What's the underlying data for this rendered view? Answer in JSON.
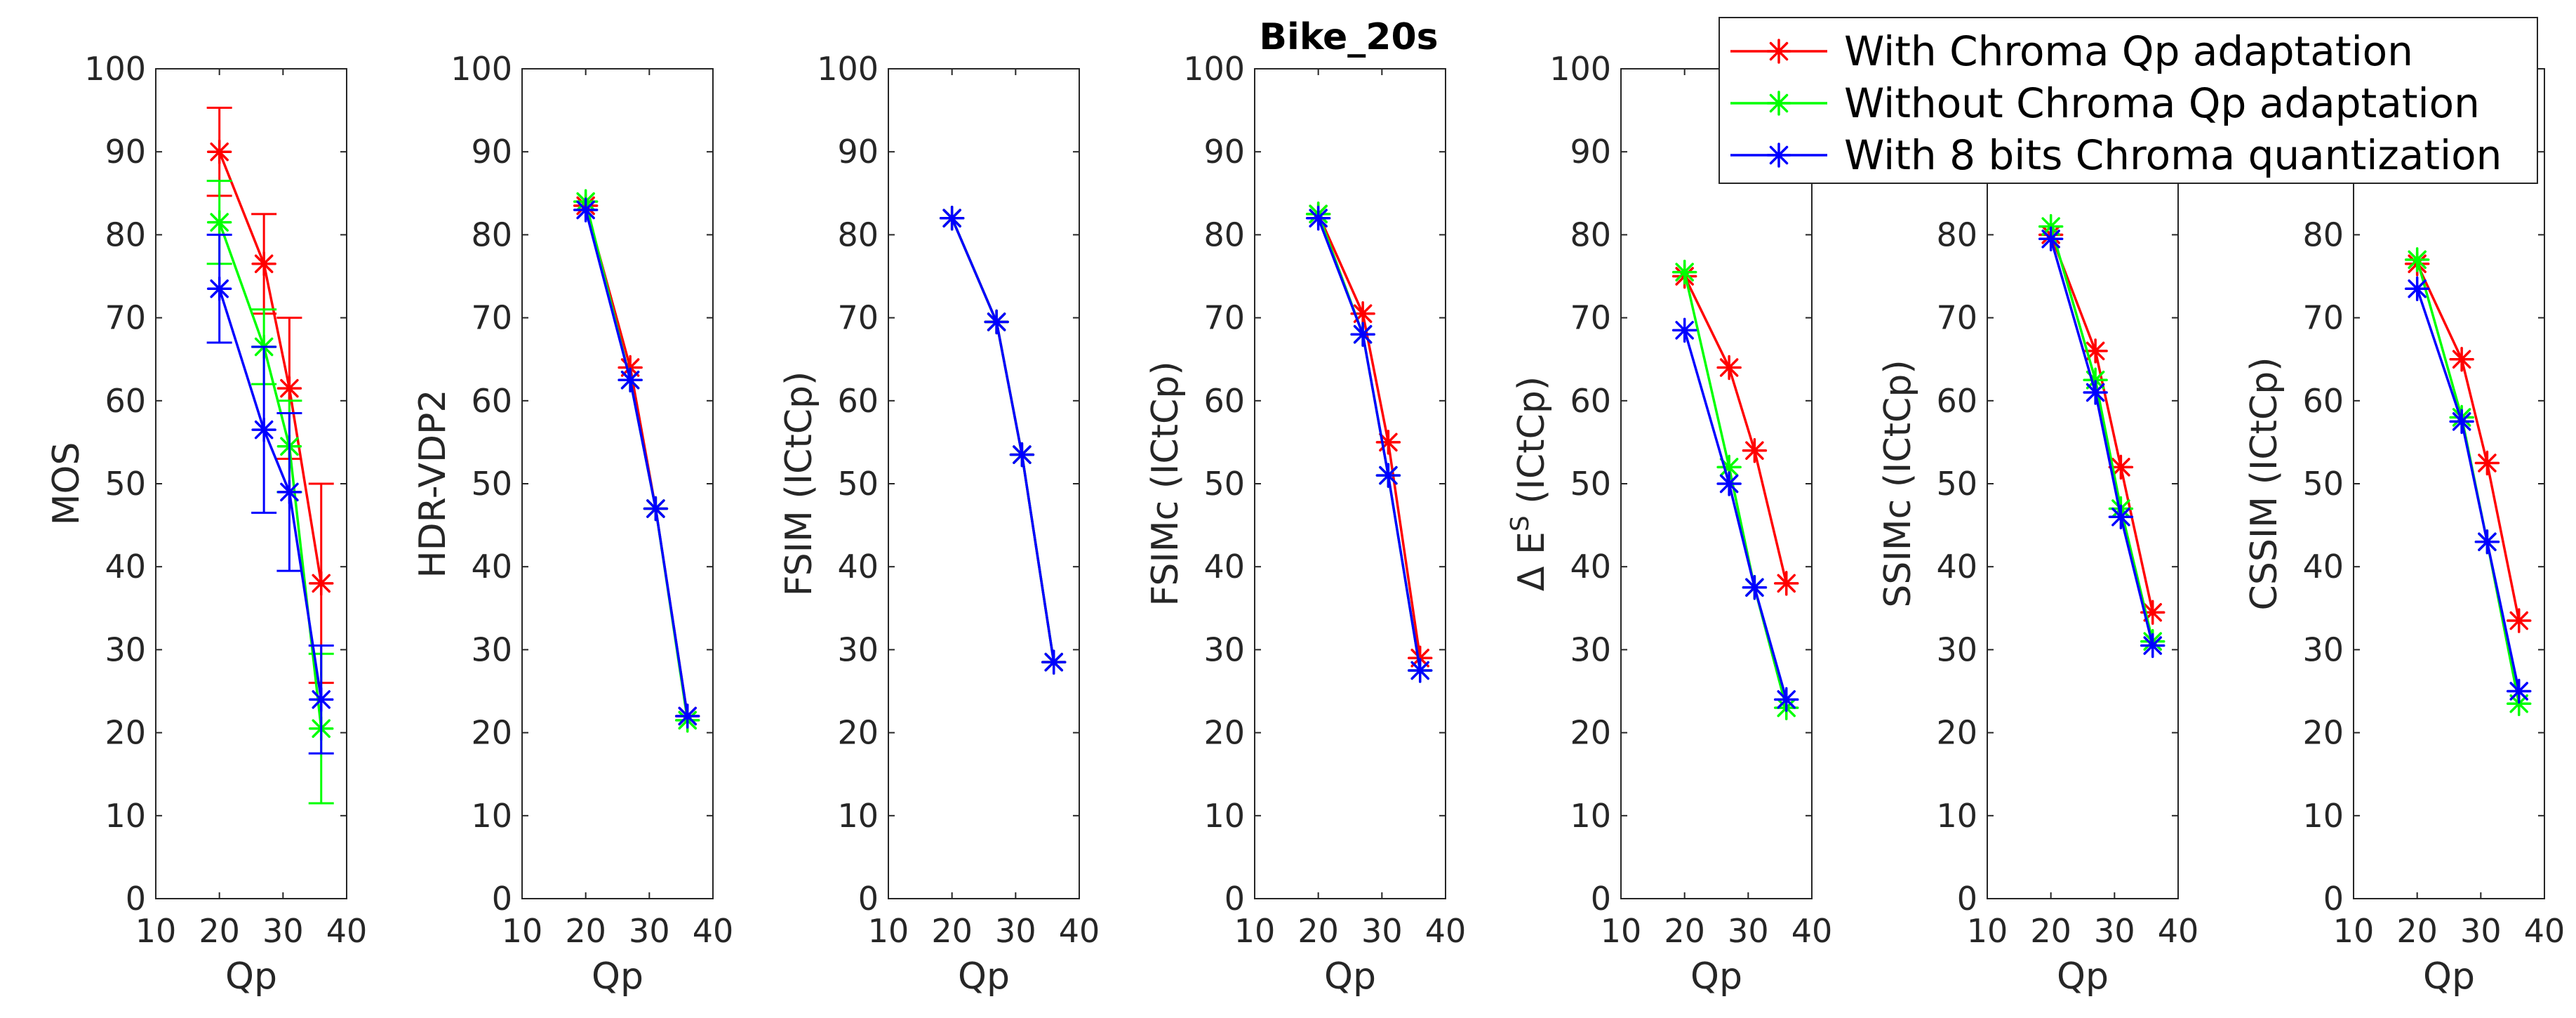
{
  "chart_data": {
    "type": "line",
    "title": "Bike_20s",
    "x": [
      20,
      27,
      31,
      36
    ],
    "xlabel": "Qp",
    "xlim": [
      10,
      40
    ],
    "xticks": [
      10,
      20,
      30,
      40
    ],
    "ylim": [
      0,
      100
    ],
    "yticks": [
      0,
      10,
      20,
      30,
      40,
      50,
      60,
      70,
      80,
      90,
      100
    ],
    "grid": false,
    "legend_position": "top-right",
    "colors": {
      "With Chroma Qp adaptation": "#ff0000",
      "Without Chroma Qp adaptation": "#00ff00",
      "With 8 bits Chroma quantization": "#0000ff"
    },
    "panels": [
      {
        "ylabel": "MOS",
        "series": [
          {
            "name": "With Chroma Qp adaptation",
            "values": [
              90,
              76.5,
              61.5,
              38
            ],
            "error": [
              5.3,
              6,
              8.5,
              12
            ]
          },
          {
            "name": "Without Chroma Qp adaptation",
            "values": [
              81.5,
              66.5,
              54.5,
              20.5
            ],
            "error": [
              5,
              4.5,
              5.5,
              9
            ]
          },
          {
            "name": "With 8 bits Chroma quantization",
            "values": [
              73.5,
              56.5,
              49,
              24
            ],
            "error": [
              6.5,
              10,
              9.5,
              6.5
            ]
          }
        ]
      },
      {
        "ylabel": "HDR-VDP2",
        "series": [
          {
            "name": "With Chroma Qp adaptation",
            "values": [
              83.5,
              64,
              47,
              22
            ]
          },
          {
            "name": "Without Chroma Qp adaptation",
            "values": [
              84,
              62.5,
              47,
              21.5
            ]
          },
          {
            "name": "With 8 bits Chroma quantization",
            "values": [
              83,
              62.5,
              47,
              22
            ]
          }
        ]
      },
      {
        "ylabel": "FSIM (ICtCp)",
        "series": [
          {
            "name": "With Chroma Qp adaptation",
            "values": [
              82,
              69.5,
              53.5,
              28.5
            ]
          },
          {
            "name": "Without Chroma Qp adaptation",
            "values": [
              82,
              69.5,
              53.5,
              28.5
            ]
          },
          {
            "name": "With 8 bits Chroma quantization",
            "values": [
              82,
              69.5,
              53.5,
              28.5
            ]
          }
        ]
      },
      {
        "ylabel": "FSIMc (ICtCp)",
        "series": [
          {
            "name": "With Chroma Qp adaptation",
            "values": [
              82.5,
              70.5,
              55,
              29
            ]
          },
          {
            "name": "Without Chroma Qp adaptation",
            "values": [
              82.5,
              68,
              51,
              27.5
            ]
          },
          {
            "name": "With 8 bits Chroma quantization",
            "values": [
              82,
              68,
              51,
              27.5
            ]
          }
        ]
      },
      {
        "ylabel": "Δ E",
        "ylabel_superscript": "S",
        "ylabel_suffix": " (ICtCp)",
        "series": [
          {
            "name": "With Chroma Qp adaptation",
            "values": [
              75,
              64,
              54,
              38
            ]
          },
          {
            "name": "Without Chroma Qp adaptation",
            "values": [
              75.5,
              52,
              37.5,
              23
            ]
          },
          {
            "name": "With 8 bits Chroma quantization",
            "values": [
              68.5,
              50,
              37.5,
              24
            ]
          }
        ]
      },
      {
        "ylabel": "SSIMc (ICtCp)",
        "series": [
          {
            "name": "With Chroma Qp adaptation",
            "values": [
              80,
              66,
              52,
              34.5
            ]
          },
          {
            "name": "Without Chroma Qp adaptation",
            "values": [
              81,
              62.5,
              47,
              31
            ]
          },
          {
            "name": "With 8 bits Chroma quantization",
            "values": [
              79.5,
              61,
              46,
              30.5
            ]
          }
        ]
      },
      {
        "ylabel": "CSSIM (ICtCp)",
        "series": [
          {
            "name": "With Chroma Qp adaptation",
            "values": [
              76.5,
              65,
              52.5,
              33.5
            ]
          },
          {
            "name": "Without Chroma Qp adaptation",
            "values": [
              77,
              58,
              43,
              23.5
            ]
          },
          {
            "name": "With 8 bits Chroma quantization",
            "values": [
              73.5,
              57.5,
              43,
              25
            ]
          }
        ]
      }
    ]
  }
}
